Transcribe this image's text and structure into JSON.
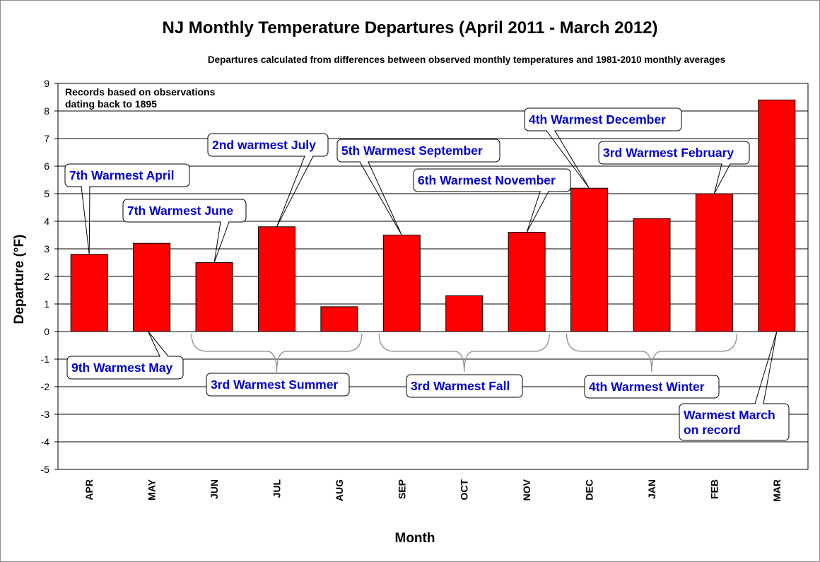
{
  "chart_data": {
    "type": "bar",
    "title": "NJ Monthly  Temperature  Departures  (April 2011 - March 2012)",
    "subtitle": "Departures calculated from differences between observed monthly temperatures and 1981-2010 monthly  averages",
    "xlabel": "Month",
    "ylabel": "Departure (°F)",
    "ylim": [
      -5,
      9
    ],
    "yticks": [
      "9",
      "8",
      "7",
      "6",
      "5",
      "4",
      "3",
      "2",
      "1",
      "0",
      "-1",
      "-2",
      "-3",
      "-4",
      "-5"
    ],
    "grid": true,
    "bar_color": "#ff0000",
    "categories": [
      "APR",
      "MAY",
      "JUN",
      "JUL",
      "AUG",
      "SEP",
      "OCT",
      "NOV",
      "DEC",
      "JAN",
      "FEB",
      "MAR"
    ],
    "values": [
      2.8,
      3.2,
      2.5,
      3.8,
      0.9,
      3.5,
      1.3,
      3.6,
      5.2,
      4.1,
      5.0,
      8.4
    ],
    "note": [
      "Records based on observations",
      "dating back to 1895"
    ],
    "annotations": [
      {
        "lines": [
          "7th Warmest April"
        ],
        "target": "APR"
      },
      {
        "lines": [
          "9th Warmest May"
        ],
        "target": "MAY"
      },
      {
        "lines": [
          "7th Warmest June"
        ],
        "target": "JUN"
      },
      {
        "lines": [
          "2nd warmest July"
        ],
        "target": "JUL"
      },
      {
        "lines": [
          "5th Warmest September"
        ],
        "target": "SEP"
      },
      {
        "lines": [
          "6th Warmest November"
        ],
        "target": "NOV"
      },
      {
        "lines": [
          "4th Warmest December"
        ],
        "target": "DEC"
      },
      {
        "lines": [
          "3rd Warmest February"
        ],
        "target": "FEB"
      },
      {
        "lines": [
          "Warmest March",
          "on record"
        ],
        "target": "MAR"
      },
      {
        "lines": [
          "3rd Warmest Summer"
        ],
        "target": [
          "JUN",
          "JUL",
          "AUG"
        ]
      },
      {
        "lines": [
          "3rd Warmest Fall"
        ],
        "target": [
          "SEP",
          "OCT",
          "NOV"
        ]
      },
      {
        "lines": [
          "4th Warmest Winter"
        ],
        "target": [
          "DEC",
          "JAN",
          "FEB"
        ]
      }
    ]
  }
}
